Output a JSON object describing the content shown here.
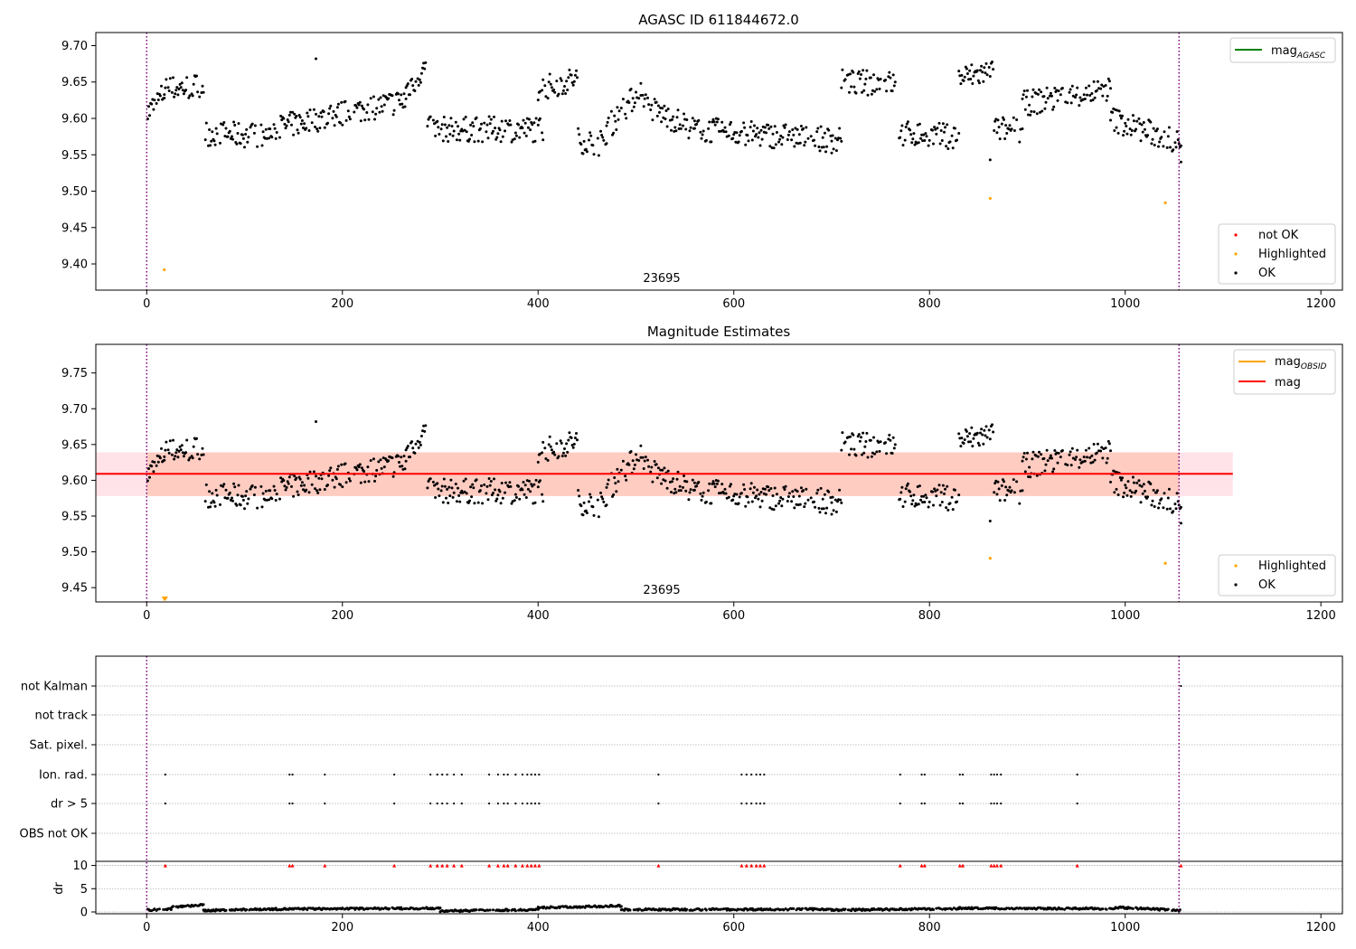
{
  "chart_data": [
    {
      "type": "scatter",
      "title": "AGASC ID 611844672.0",
      "xlabel": "",
      "ylabel": "",
      "xlim": [
        -52,
        1222
      ],
      "ylim": [
        9.364,
        9.718
      ],
      "x_ticks": [
        "0",
        "200",
        "400",
        "600",
        "800",
        "1000",
        "1200"
      ],
      "y_ticks": [
        "9.40",
        "9.45",
        "9.50",
        "9.55",
        "9.60",
        "9.65",
        "9.70"
      ],
      "obsid_label": "23695",
      "vlines": [
        0,
        1055
      ],
      "lines_legend": [
        {
          "label": "mag",
          "subscript": "AGASC",
          "color": "#008000"
        }
      ],
      "points_legend": [
        {
          "label": "not OK",
          "color": "#ff0000"
        },
        {
          "label": "Highlighted",
          "color": "#ffa500"
        },
        {
          "label": "OK",
          "color": "#000000"
        }
      ],
      "highlighted_points": [
        [
          18,
          9.392
        ],
        [
          862,
          9.49
        ],
        [
          1041,
          9.484
        ]
      ],
      "ok_series": {
        "x_range": [
          0,
          1057
        ],
        "segments": [
          {
            "from": 0,
            "to": 18,
            "start": 9.605,
            "end": 9.635
          },
          {
            "from": 18,
            "to": 58,
            "start": 9.64,
            "end": 9.645
          },
          {
            "from": 60,
            "to": 125,
            "start": 9.58,
            "end": 9.575
          },
          {
            "from": 125,
            "to": 265,
            "start": 9.585,
            "end": 9.625
          },
          {
            "from": 265,
            "to": 285,
            "start": 9.64,
            "end": 9.67
          },
          {
            "from": 287,
            "to": 405,
            "start": 9.585,
            "end": 9.585
          },
          {
            "from": 400,
            "to": 440,
            "start": 9.64,
            "end": 9.655
          },
          {
            "from": 440,
            "to": 470,
            "start": 9.57,
            "end": 9.565
          },
          {
            "from": 470,
            "to": 505,
            "start": 9.585,
            "end": 9.64
          },
          {
            "from": 505,
            "to": 560,
            "start": 9.62,
            "end": 9.585
          },
          {
            "from": 560,
            "to": 700,
            "start": 9.585,
            "end": 9.57
          },
          {
            "from": 700,
            "to": 710,
            "start": 9.56,
            "end": 9.58
          },
          {
            "from": 710,
            "to": 765,
            "start": 9.65,
            "end": 9.648
          },
          {
            "from": 768,
            "to": 830,
            "start": 9.58,
            "end": 9.575
          },
          {
            "from": 830,
            "to": 865,
            "start": 9.655,
            "end": 9.665
          },
          {
            "from": 865,
            "to": 895,
            "start": 9.585,
            "end": 9.585
          },
          {
            "from": 895,
            "to": 985,
            "start": 9.62,
            "end": 9.64
          },
          {
            "from": 985,
            "to": 1057,
            "start": 9.6,
            "end": 9.565
          }
        ],
        "outliers": [
          [
            173,
            9.682
          ],
          [
            862,
            9.543
          ],
          [
            1057,
            9.54
          ]
        ]
      }
    },
    {
      "type": "scatter",
      "title": "Magnitude Estimates",
      "xlabel": "",
      "ylabel": "",
      "xlim": [
        -52,
        1222
      ],
      "ylim": [
        9.43,
        9.79
      ],
      "x_ticks": [
        "0",
        "200",
        "400",
        "600",
        "800",
        "1000",
        "1200"
      ],
      "y_ticks": [
        "9.45",
        "9.50",
        "9.55",
        "9.60",
        "9.65",
        "9.70",
        "9.75"
      ],
      "obsid_label": "23695",
      "vlines": [
        0,
        1055
      ],
      "mag": 9.609,
      "mag_band": [
        9.578,
        9.639
      ],
      "mag_obsid_band": [
        9.578,
        9.639
      ],
      "band_x_range": [
        -52,
        1110
      ],
      "mag_obsid_x_range": [
        0,
        1055
      ],
      "lines_legend": [
        {
          "label": "mag",
          "subscript": "OBSID",
          "color": "#ffa500"
        },
        {
          "label": "mag",
          "subscript": "",
          "color": "#ff0000"
        }
      ],
      "points_legend": [
        {
          "label": "Highlighted",
          "color": "#ffa500"
        },
        {
          "label": "OK",
          "color": "#000000"
        }
      ],
      "highlighted_points": [
        [
          862,
          9.491
        ],
        [
          1041,
          9.484
        ]
      ],
      "clipped_markers": [
        18,
        19
      ]
    },
    {
      "type": "scatter",
      "title": "",
      "xlim": [
        -52,
        1222
      ],
      "x_ticks": [
        "0",
        "200",
        "400",
        "600",
        "800",
        "1000",
        "1200"
      ],
      "flag_rows": [
        "not Kalman",
        "not track",
        "Sat. pixel.",
        "Ion. rad.",
        "dr > 5",
        "OBS not OK"
      ],
      "flag_positions": [
        19,
        146,
        149,
        182,
        253,
        290,
        297,
        302,
        307,
        314,
        322,
        350,
        359,
        365,
        369,
        377,
        384,
        389,
        393,
        397,
        401,
        523,
        608,
        613,
        618,
        623,
        627,
        631,
        770,
        792,
        795,
        831,
        834,
        863,
        866,
        869,
        873,
        951
      ],
      "not_kalman_positions": [
        1057
      ],
      "dr": {
        "ylabel": "dr",
        "ylim": [
          0,
          10.5
        ],
        "y_ticks": [
          "0",
          "5",
          "10"
        ],
        "threshold": 10,
        "segments": [
          {
            "from": 0,
            "to": 25,
            "start": 0.4,
            "end": 0.6
          },
          {
            "from": 25,
            "to": 58,
            "start": 1.0,
            "end": 1.5
          },
          {
            "from": 58,
            "to": 120,
            "start": 0.3,
            "end": 0.6
          },
          {
            "from": 120,
            "to": 300,
            "start": 0.6,
            "end": 0.8
          },
          {
            "from": 300,
            "to": 400,
            "start": 0.2,
            "end": 0.5
          },
          {
            "from": 400,
            "to": 485,
            "start": 0.9,
            "end": 1.3
          },
          {
            "from": 485,
            "to": 700,
            "start": 0.5,
            "end": 0.6
          },
          {
            "from": 700,
            "to": 830,
            "start": 0.4,
            "end": 0.7
          },
          {
            "from": 830,
            "to": 990,
            "start": 0.8,
            "end": 0.7
          },
          {
            "from": 990,
            "to": 1057,
            "start": 1.0,
            "end": 0.3
          }
        ]
      }
    }
  ]
}
